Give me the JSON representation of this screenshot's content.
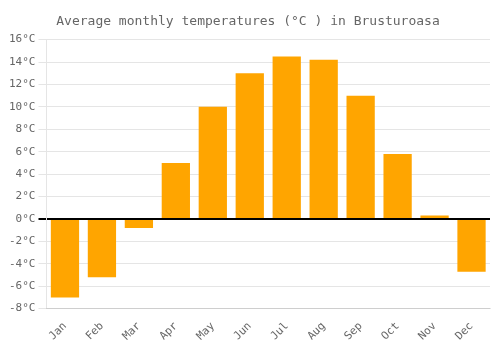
{
  "chart_data": {
    "type": "bar",
    "title": "Average monthly temperatures (°C ) in Brusturoasa",
    "categories": [
      "Jan",
      "Feb",
      "Mar",
      "Apr",
      "May",
      "Jun",
      "Jul",
      "Aug",
      "Sep",
      "Oct",
      "Nov",
      "Dec"
    ],
    "values": [
      -7,
      -5.2,
      -0.8,
      5,
      10,
      13,
      14.5,
      14.2,
      11,
      5.8,
      0.3,
      -4.7
    ],
    "color": "#FFA500",
    "ylim": [
      -8,
      16
    ],
    "yticks": [
      {
        "value": -8,
        "label": "-8°C"
      },
      {
        "value": -6,
        "label": "-6°C"
      },
      {
        "value": -4,
        "label": "-4°C"
      },
      {
        "value": -2,
        "label": "-2°C"
      },
      {
        "value": 0,
        "label": "0°C"
      },
      {
        "value": 2,
        "label": "2°C"
      },
      {
        "value": 4,
        "label": "4°C"
      },
      {
        "value": 6,
        "label": "6°C"
      },
      {
        "value": 8,
        "label": "8°C"
      },
      {
        "value": 10,
        "label": "10°C"
      },
      {
        "value": 12,
        "label": "12°C"
      },
      {
        "value": 14,
        "label": "14°C"
      },
      {
        "value": 16,
        "label": "16°C"
      }
    ],
    "grid": true
  }
}
